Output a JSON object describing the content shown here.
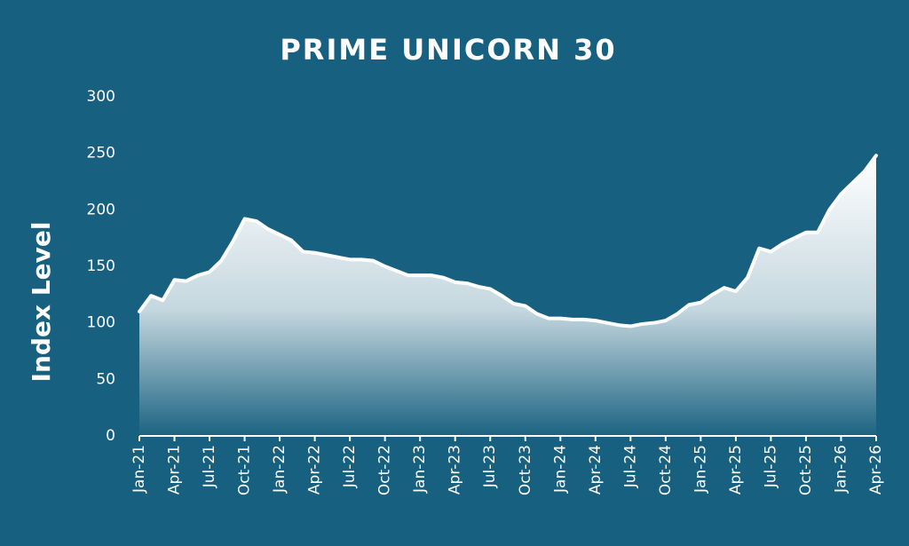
{
  "chart_data": {
    "type": "area",
    "title": "PRIME UNICORN 30",
    "y_label": "Index Level",
    "categories": [
      "Jan-21",
      null,
      null,
      "Apr-21",
      null,
      null,
      "Jul-21",
      null,
      null,
      "Oct-21",
      null,
      null,
      "Jan-22",
      null,
      null,
      "Apr-22",
      null,
      null,
      "Jul-22",
      null,
      null,
      "Oct-22",
      null,
      null,
      "Jan-23",
      null,
      null,
      "Apr-23",
      null,
      null,
      "Jul-23",
      null,
      null,
      "Oct-23",
      null,
      null,
      "Jan-24",
      null,
      null,
      "Apr-24",
      null,
      null,
      "Jul-24",
      null,
      null,
      "Oct-24",
      null,
      null,
      "Jan-25",
      null,
      null,
      "Apr-25",
      null,
      null,
      "Jul-25",
      null,
      null,
      "Oct-25",
      null,
      null,
      "Jan-26",
      null,
      null,
      "Apr-26"
    ],
    "values": [
      110,
      124,
      120,
      138,
      137,
      142,
      145,
      155,
      172,
      192,
      190,
      183,
      178,
      173,
      163,
      162,
      160,
      158,
      156,
      156,
      155,
      150,
      146,
      142,
      142,
      142,
      140,
      136,
      135,
      132,
      130,
      124,
      117,
      115,
      108,
      104,
      104,
      103,
      103,
      102,
      100,
      98,
      97,
      99,
      100,
      102,
      108,
      116,
      118,
      125,
      131,
      128,
      140,
      166,
      163,
      170,
      175,
      180,
      180,
      200,
      214,
      224,
      234,
      248
    ],
    "color": "#ffffff",
    "background": "#17607f",
    "ylim": [
      0,
      300
    ],
    "yticks": [
      0,
      50,
      100,
      150,
      200,
      250,
      300
    ],
    "grid": false
  }
}
